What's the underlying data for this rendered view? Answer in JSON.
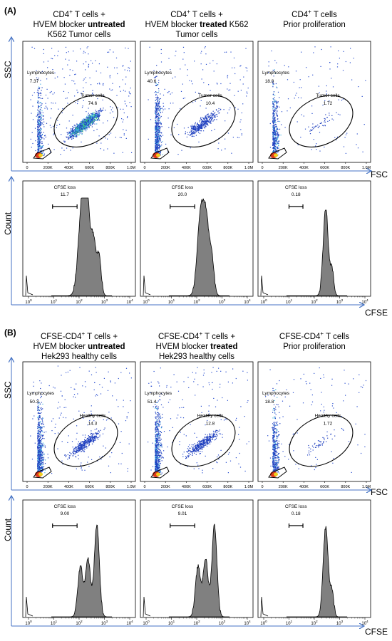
{
  "panels": [
    {
      "label": "(A)",
      "columns": [
        {
          "title_lines": [
            [
              "CD4",
              "+",
              " T cells  +"
            ],
            [
              "HVEM blocker ",
              "untreated"
            ],
            [
              "K562 Tumor cells"
            ]
          ]
        },
        {
          "title_lines": [
            [
              "CD4",
              "+",
              " T cells +"
            ],
            [
              "HVEM blocker ",
              "treated",
              " K562"
            ],
            [
              "Tumor cells"
            ]
          ]
        },
        {
          "title_lines": [
            [
              "CD4",
              "+",
              " T cells"
            ],
            [
              "Prior proliferation"
            ]
          ]
        }
      ],
      "scatter_plots": [
        {
          "lymph_label": "Lymphocytes",
          "lymph_value": "7.37",
          "gate_label": "Tumor cells",
          "gate_value": "74.6",
          "density": "high"
        },
        {
          "lymph_label": "Lymphocytes",
          "lymph_value": "40.6",
          "gate_label": "Tumor cells",
          "gate_value": "10.4",
          "density": "medium"
        },
        {
          "lymph_label": "Lymphocytes",
          "lymph_value": "18.8",
          "gate_label": "Tumor cells",
          "gate_value": "1.72",
          "density": "low"
        }
      ],
      "histograms": [
        {
          "gate_label": "CFSE loss",
          "gate_value": "11.7",
          "shape": "broad"
        },
        {
          "gate_label": "CFSE loss",
          "gate_value": "20.0",
          "shape": "mid"
        },
        {
          "gate_label": "CFSE loss",
          "gate_value": "0.18",
          "shape": "narrow"
        }
      ]
    },
    {
      "label": "(B)",
      "columns": [
        {
          "title_lines": [
            [
              "CFSE-CD4",
              "+",
              " T cells  +"
            ],
            [
              "HVEM blocker ",
              "untreated"
            ],
            [
              "Hek293 healthy cells"
            ]
          ]
        },
        {
          "title_lines": [
            [
              "CFSE-CD4",
              "+",
              " T cells +"
            ],
            [
              "HVEM blocker ",
              "treated"
            ],
            [
              "Hek293 healthy cells"
            ]
          ]
        },
        {
          "title_lines": [
            [
              "CFSE-CD4",
              "+",
              " T cells"
            ],
            [
              "Prior proliferation"
            ]
          ]
        }
      ],
      "scatter_plots": [
        {
          "lymph_label": "Lymphocytes",
          "lymph_value": "50.3",
          "gate_label": "Healthy cells",
          "gate_value": "14.3",
          "density": "medium"
        },
        {
          "lymph_label": "Lymphocytes",
          "lymph_value": "51.4",
          "gate_label": "Healthy cells",
          "gate_value": "12.8",
          "density": "medium"
        },
        {
          "lymph_label": "Lymphocytes",
          "lymph_value": "18.8",
          "gate_label": "Healthy cells",
          "gate_value": "1.72",
          "density": "low"
        }
      ],
      "histograms": [
        {
          "gate_label": "CFSE loss",
          "gate_value": "9.00",
          "shape": "tri"
        },
        {
          "gate_label": "CFSE loss",
          "gate_value": "9.01",
          "shape": "tri"
        },
        {
          "gate_label": "CFSE loss",
          "gate_value": "0.18",
          "shape": "narrow"
        }
      ]
    }
  ],
  "axes": {
    "scatter_y": "SSC",
    "scatter_x": "FSC",
    "hist_y": "Count",
    "hist_x": "CFSE",
    "scatter_ticks": [
      "0",
      "200K",
      "400K",
      "600K",
      "800K",
      "1.0M"
    ],
    "hist_tick_exponents": [
      "0",
      "1",
      "2",
      "3",
      "4"
    ],
    "hist_tick_base": "10"
  },
  "colors": {
    "axis_arrow": "#4472c4",
    "hist_fill": "#808080",
    "gate_line": "#000000"
  }
}
